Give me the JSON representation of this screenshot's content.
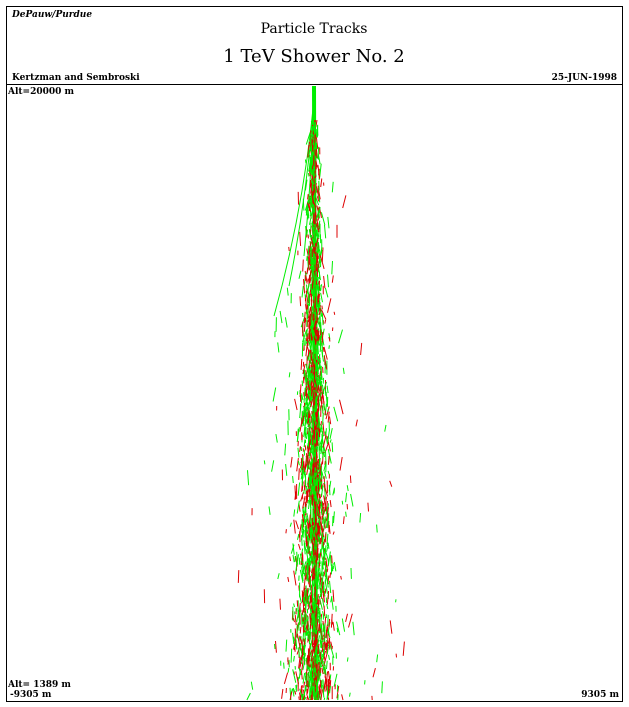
{
  "header": {
    "logo": "DePauw/Purdue",
    "title": "Particle Tracks",
    "subtitle": "1 TeV Shower No. 2",
    "authors": "Kertzman and Sembroski",
    "date": "25-JUN-1998"
  },
  "plot": {
    "top_altitude": "Alt=20000 m",
    "bottom_altitude": "Alt= 1389 m",
    "x_min": "-9305 m",
    "x_max": "9305 m"
  }
}
